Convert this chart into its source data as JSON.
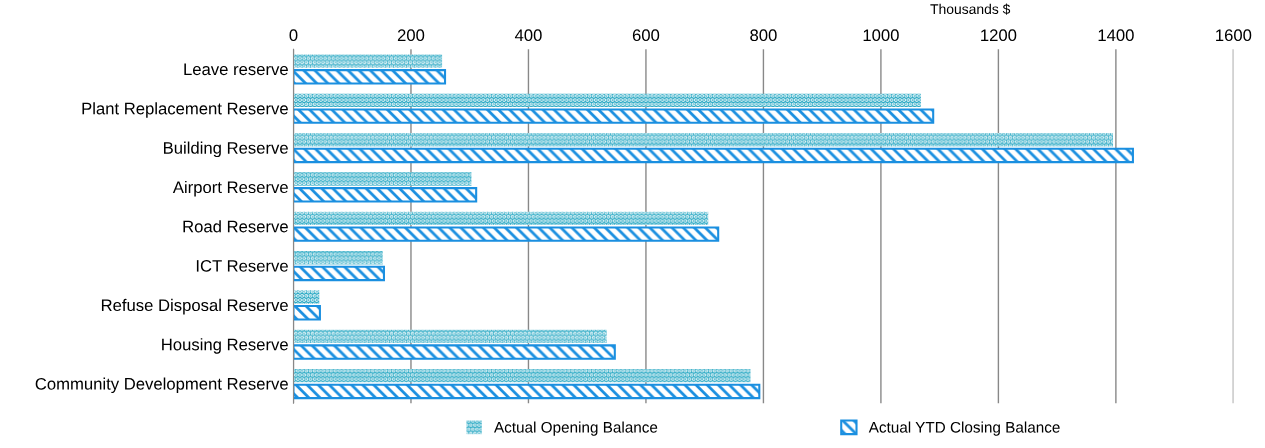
{
  "chart_data": {
    "type": "bar",
    "orientation": "horizontal",
    "xlabel": "Thousands $",
    "categories": [
      "Leave reserve",
      "Plant Replacement Reserve",
      "Building Reserve",
      "Airport Reserve",
      "Road Reserve",
      "ICT Reserve",
      "Refuse Disposal Reserve",
      "Housing Reserve",
      "Community Development Reserve"
    ],
    "series": [
      {
        "name": "Actual Opening Balance",
        "color": "#2aa9c4",
        "values": [
          253,
          1068,
          1395,
          303,
          706,
          152,
          44,
          533,
          778
        ]
      },
      {
        "name": "Actual YTD Closing Balance",
        "color": "#1a8fe0",
        "values": [
          258,
          1089,
          1429,
          311,
          723,
          154,
          45,
          547,
          793
        ]
      }
    ],
    "xlim": [
      0,
      1600
    ],
    "xticks": [
      0,
      200,
      400,
      600,
      800,
      1000,
      1200,
      1400,
      1600
    ],
    "grid": "x",
    "legend": "bottom"
  }
}
